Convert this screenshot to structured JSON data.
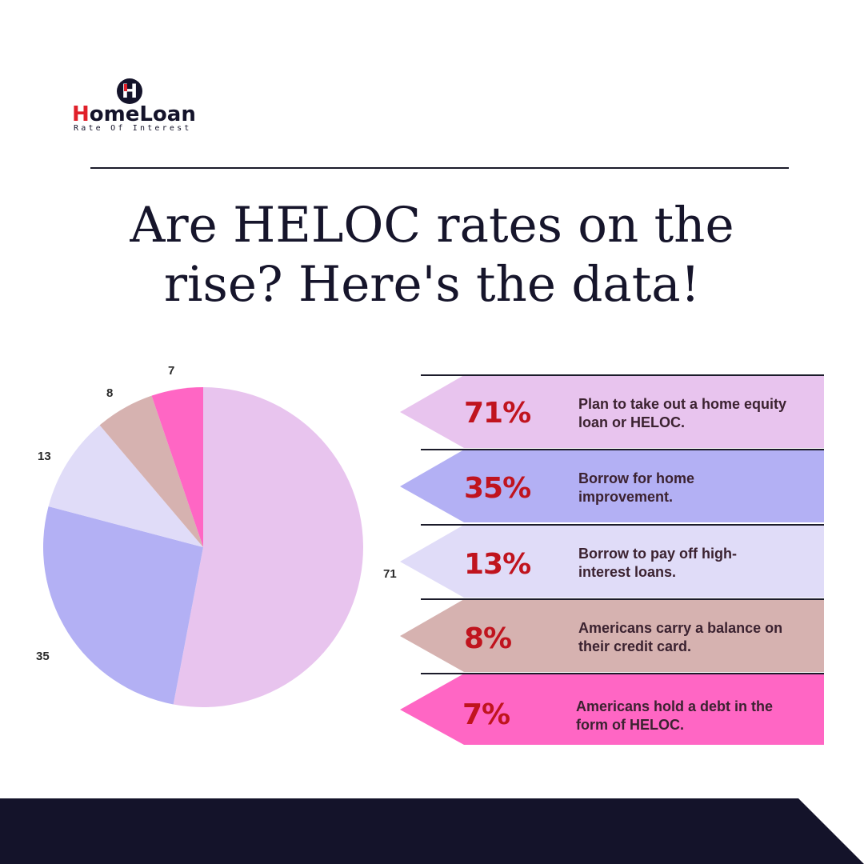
{
  "brand": {
    "badge_letter": "H",
    "name_part1": "H",
    "name_part2": "omeLoan",
    "tagline": "Rate Of Interest"
  },
  "title": {
    "line1": "Are HELOC rates on the",
    "line2": "rise? Here's the data!"
  },
  "colors": {
    "navy": "#14132a",
    "accent_red": "#c0141e",
    "slice_71": "#e8c4ee",
    "slice_35": "#b3b0f4",
    "slice_13": "#e0dcf8",
    "slice_8": "#d6b2b0",
    "slice_7": "#ff66c4"
  },
  "stats": [
    {
      "pct": "71%",
      "desc": "Plan to take out a home equity loan or HELOC.",
      "color": "#e8c4ee"
    },
    {
      "pct": "35%",
      "desc": "Borrow for home improvement.",
      "color": "#b3b0f4"
    },
    {
      "pct": "13%",
      "desc": "Borrow to pay off high-interest loans.",
      "color": "#e0dcf8"
    },
    {
      "pct": "8%",
      "desc": "Americans carry a balance on their credit card.",
      "color": "#d6b2b0"
    },
    {
      "pct": "7%",
      "desc": "Americans hold a debt in the form of HELOC.",
      "color": "#ff66c4"
    }
  ],
  "pie_labels": {
    "l71": "71",
    "l35": "35",
    "l13": "13",
    "l8": "8",
    "l7": "7"
  },
  "chart_data": {
    "type": "pie",
    "title": "Are HELOC rates on the rise? Here's the data!",
    "categories": [
      "Plan to take out a home equity loan or HELOC.",
      "Borrow for home improvement.",
      "Borrow to pay off high-interest loans.",
      "Americans carry a balance on their credit card.",
      "Americans hold a debt in the form of HELOC."
    ],
    "values": [
      71,
      35,
      13,
      8,
      7
    ],
    "data_labels": [
      "71",
      "35",
      "13",
      "8",
      "7"
    ],
    "colors": [
      "#e8c4ee",
      "#b3b0f4",
      "#e0dcf8",
      "#d6b2b0",
      "#ff66c4"
    ],
    "start_angle": "12 o'clock, clockwise",
    "legend_position": "right (arrow banners with percentages)"
  }
}
